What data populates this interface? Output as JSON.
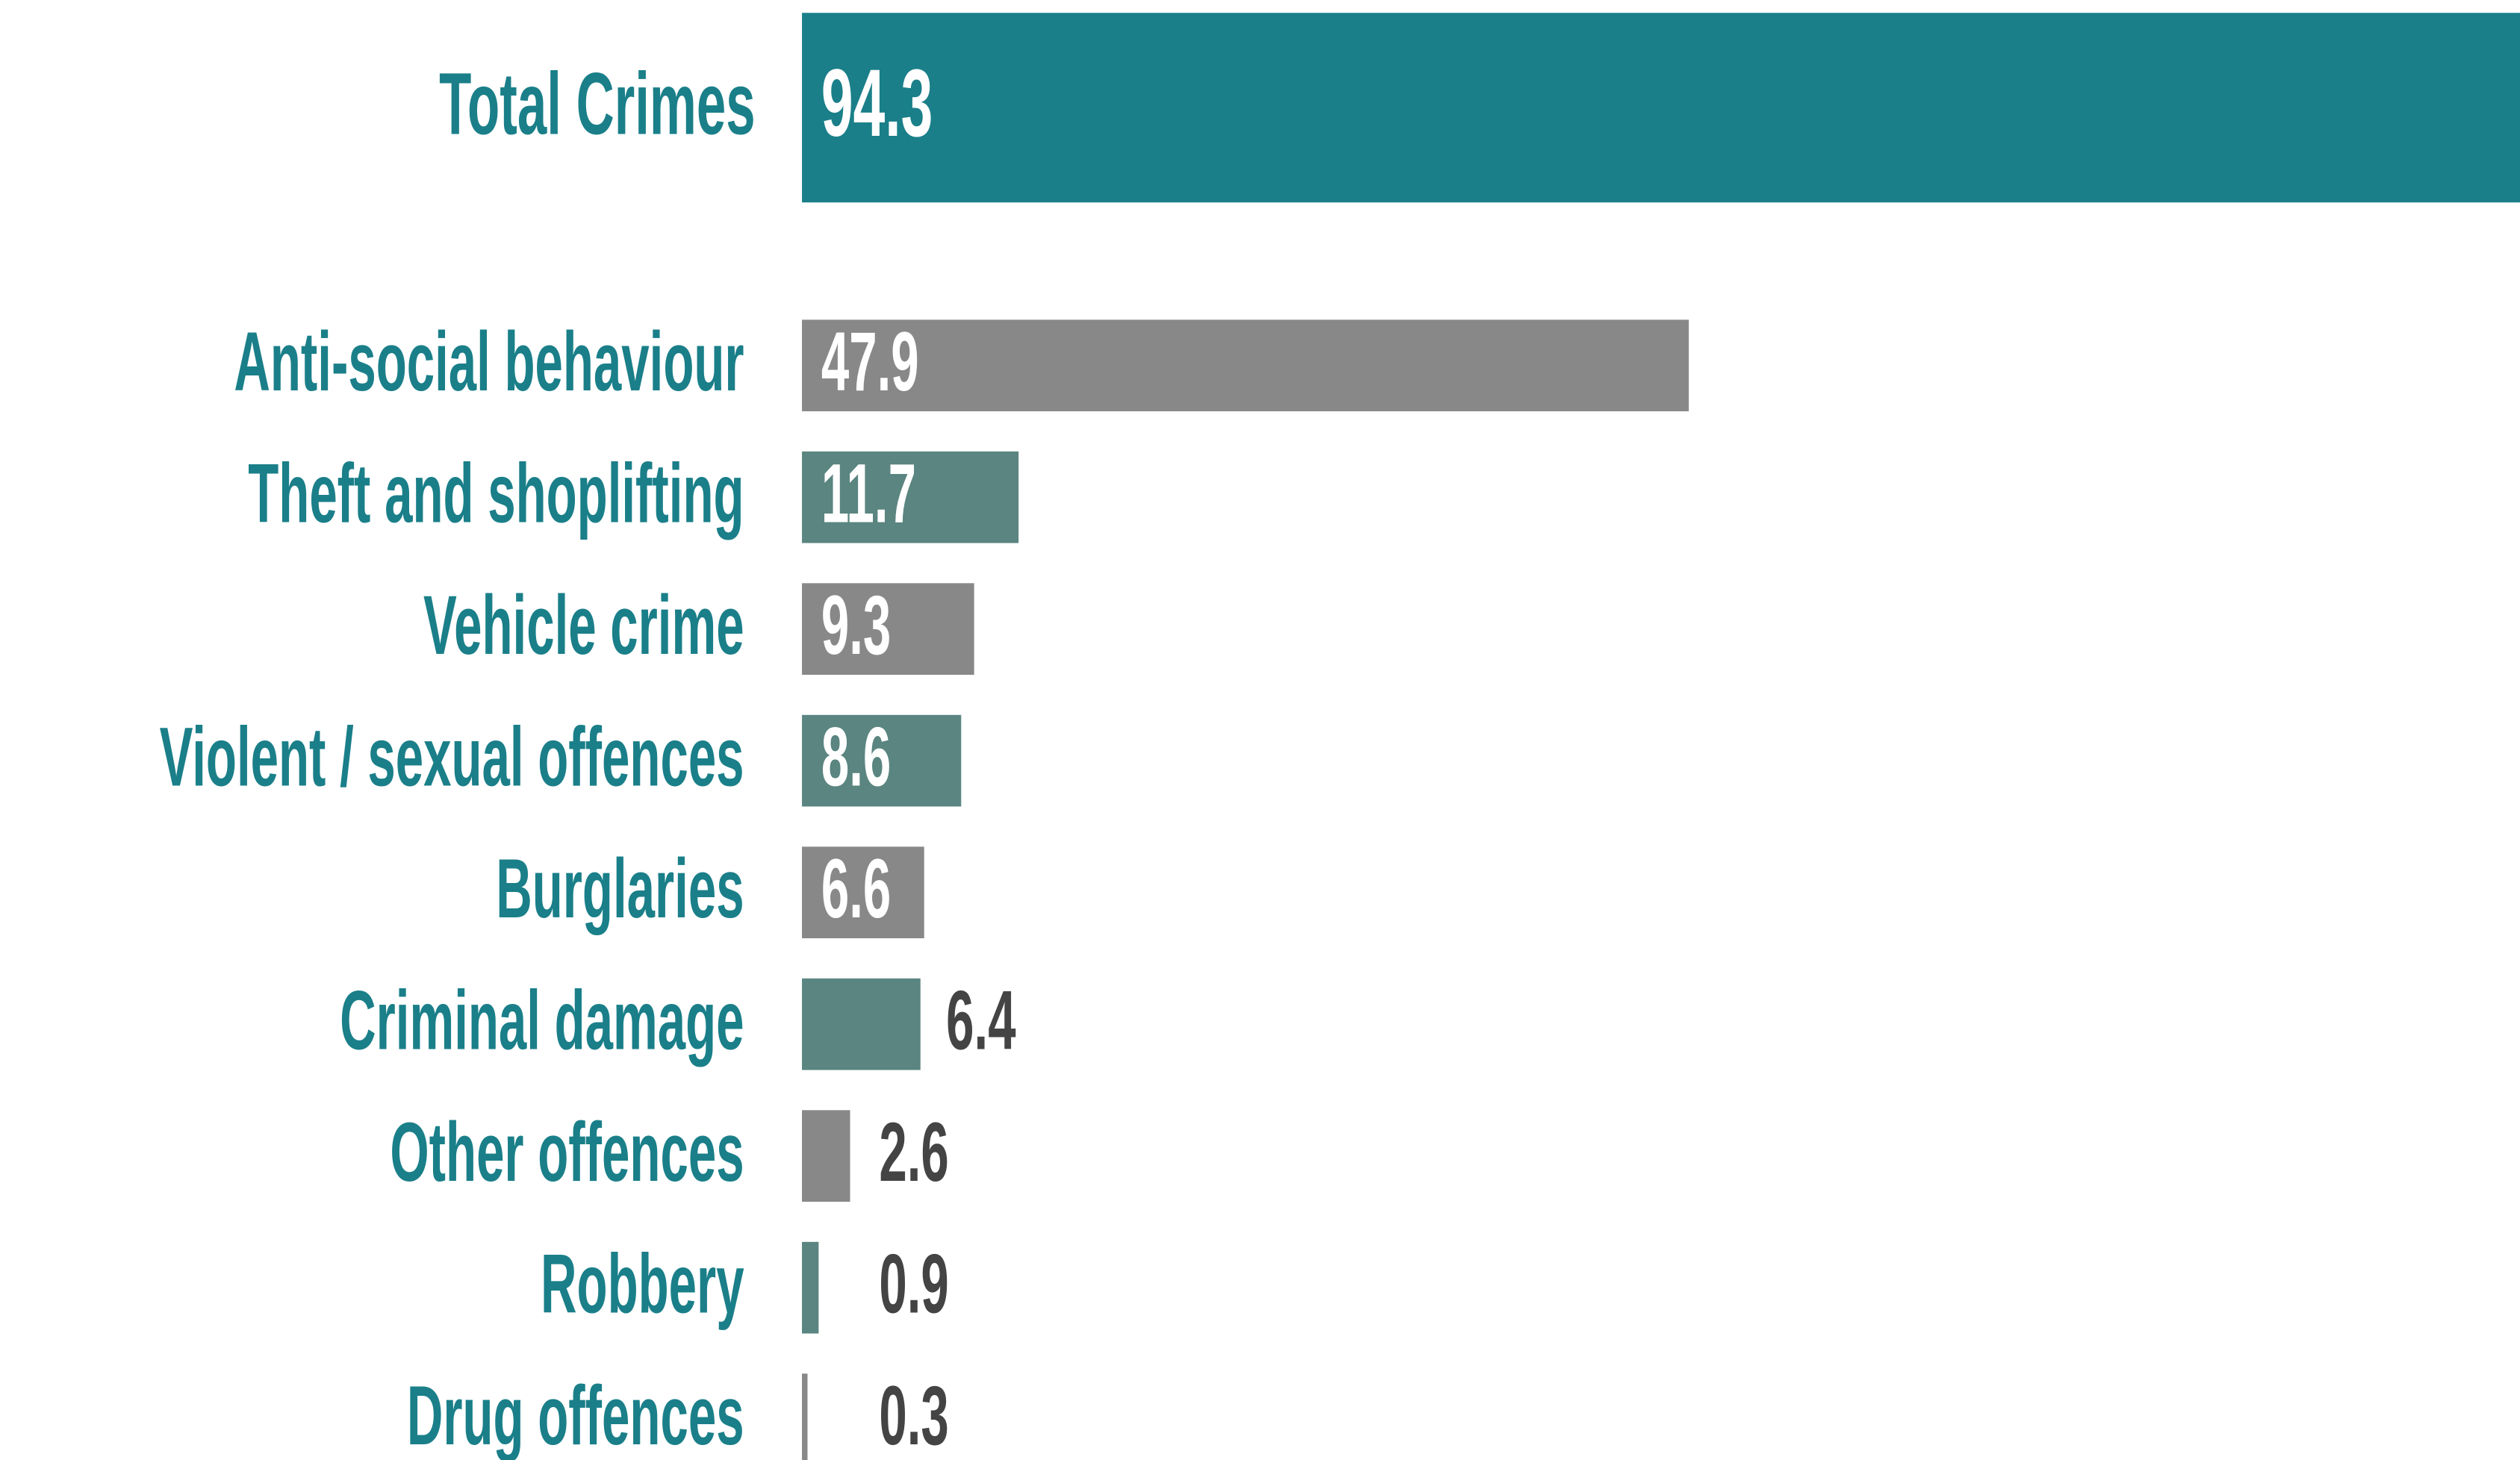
{
  "chart_data": {
    "type": "bar",
    "orientation": "horizontal",
    "categories": [
      "Total Crimes",
      "Anti-social behaviour",
      "Theft and shoplifting",
      "Vehicle crime",
      "Violent / sexual offences",
      "Burglaries",
      "Criminal damage",
      "Other offences",
      "Robbery",
      "Drug offences"
    ],
    "values": [
      94.3,
      47.9,
      11.7,
      9.3,
      8.6,
      6.6,
      6.4,
      2.6,
      0.9,
      0.3
    ],
    "colors": [
      "#1a7f89",
      "#888888",
      "#5a8580",
      "#888888",
      "#5a8580",
      "#888888",
      "#5a8580",
      "#888888",
      "#5a8580",
      "#888888"
    ],
    "label_color": "#1a7f89"
  }
}
